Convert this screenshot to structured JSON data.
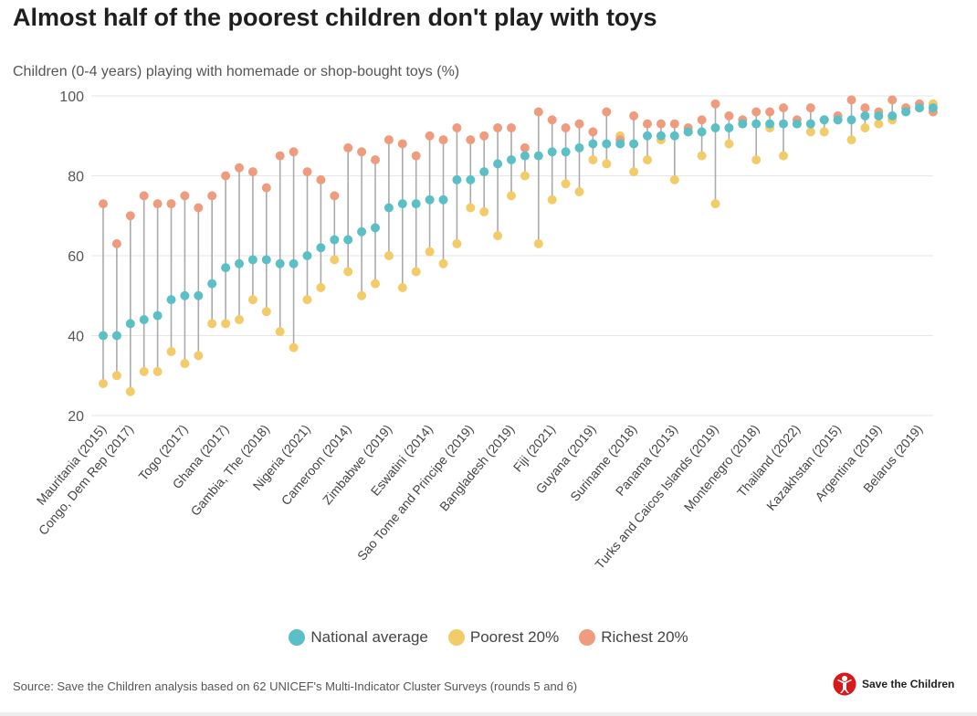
{
  "title": "Almost half of the poorest children don't play with toys",
  "subtitle": "Children (0-4 years) playing with homemade or shop-bought toys (%)",
  "source": "Source: Save the Children analysis based on 62 UNICEF's Multi-Indicator Cluster Surveys (rounds 5 and 6)",
  "logo": {
    "text": "Save the Children",
    "icon": "save-the-children-logo-icon",
    "color": "#d7191c"
  },
  "chart_data": {
    "type": "scatter",
    "title": "Almost half of the poorest children don't play with toys",
    "ylabel": "Children (0-4 years) playing with homemade or shop-bought toys (%)",
    "ylim": [
      20,
      100
    ],
    "yticks": [
      20,
      40,
      60,
      80,
      100
    ],
    "grid": true,
    "legend_position": "bottom",
    "x_labels": [
      "Mauritania (2015)",
      "Congo, Dem Rep (2017)",
      "Togo (2017)",
      "Ghana (2017)",
      "Gambia, The (2018)",
      "Nigeria (2021)",
      "Cameroon (2014)",
      "Zimbabwe (2019)",
      "Eswatini (2014)",
      "Sao Tome and Principe (2019)",
      "Bangladesh (2019)",
      "Fiji (2021)",
      "Guyana (2019)",
      "Suriname (2018)",
      "Panama (2013)",
      "Turks and Caicos Islands (2019)",
      "Montenegro (2018)",
      "Thailand (2022)",
      "Kazakhstan (2015)",
      "Argentina (2019)",
      "Belarus (2019)"
    ],
    "x_label_index": [
      0,
      2,
      6,
      9,
      12,
      15,
      18,
      21,
      24,
      27,
      30,
      33,
      36,
      39,
      42,
      45,
      48,
      51,
      54,
      57,
      60
    ],
    "point_count": 62,
    "series": [
      {
        "name": "National average",
        "color": "#5bbfc6",
        "values": [
          40,
          40,
          43,
          44,
          45,
          49,
          50,
          50,
          53,
          57,
          58,
          59,
          59,
          58,
          58,
          60,
          62,
          64,
          64,
          66,
          67,
          72,
          73,
          73,
          74,
          74,
          79,
          79,
          81,
          83,
          84,
          85,
          85,
          86,
          86,
          87,
          88,
          88,
          88,
          88,
          90,
          90,
          90,
          91,
          91,
          92,
          92,
          93,
          93,
          93,
          93,
          93,
          93,
          94,
          94,
          94,
          95,
          95,
          95,
          96,
          97,
          97
        ]
      },
      {
        "name": "Poorest 20%",
        "color": "#f3cc69",
        "values": [
          28,
          30,
          26,
          31,
          31,
          36,
          33,
          35,
          43,
          43,
          44,
          49,
          46,
          41,
          37,
          49,
          52,
          59,
          56,
          50,
          53,
          60,
          52,
          56,
          61,
          58,
          63,
          72,
          71,
          65,
          75,
          80,
          63,
          74,
          78,
          76,
          84,
          83,
          90,
          81,
          84,
          89,
          79,
          91,
          85,
          73,
          88,
          93,
          84,
          92,
          85,
          93,
          91,
          91,
          94,
          89,
          92,
          93,
          94,
          97,
          97,
          98
        ]
      },
      {
        "name": "Richest 20%",
        "color": "#ef9c7e",
        "values": [
          73,
          63,
          70,
          75,
          73,
          73,
          75,
          72,
          75,
          80,
          82,
          81,
          77,
          85,
          86,
          81,
          79,
          75,
          87,
          86,
          84,
          89,
          88,
          85,
          90,
          89,
          92,
          89,
          90,
          92,
          92,
          87,
          96,
          94,
          92,
          93,
          91,
          96,
          89,
          95,
          93,
          93,
          93,
          92,
          94,
          98,
          95,
          94,
          96,
          96,
          97,
          94,
          97,
          94,
          95,
          99,
          97,
          96,
          99,
          97,
          98,
          96
        ]
      }
    ]
  }
}
